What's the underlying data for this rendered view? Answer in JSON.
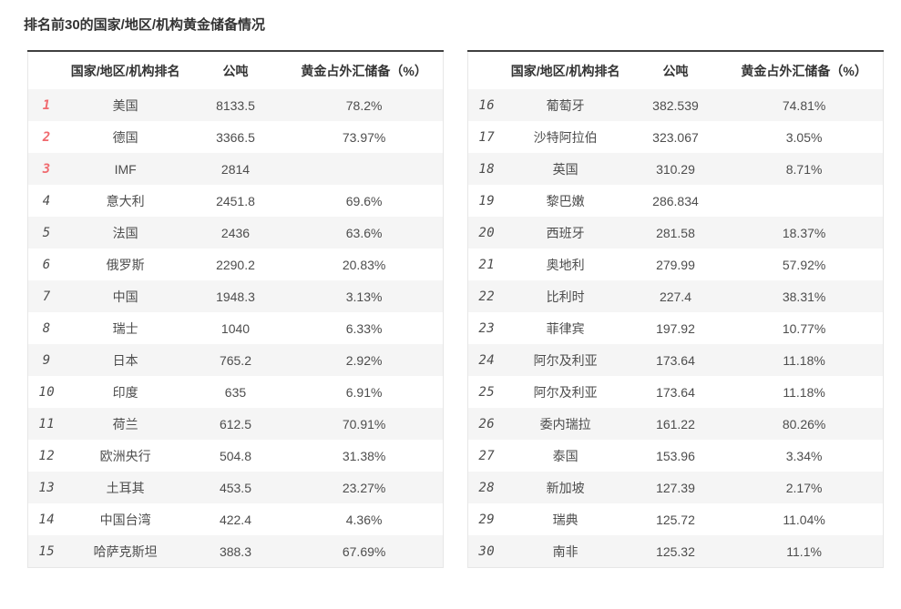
{
  "title": "排名前30的国家/地区/机构黄金储备情况",
  "colors": {
    "rank_top_red": "#f0696e",
    "rank_gray": "#777777",
    "row_alt_gray": "#f5f5f5",
    "table_top_border": "#404040",
    "table_light_border": "#e7e7e7"
  },
  "chart_data": {
    "type": "table",
    "title": "排名前30的国家/地区/机构黄金储备情况",
    "columns": [
      "国家/地区/机构排名",
      "公吨",
      "黄金占外汇储备（%）"
    ],
    "layout": "two side-by-side tables, ranks 1-15 left and 16-30 right, zebra striping on odd rows, top-3 ranks highlighted red",
    "left_rows": [
      {
        "rank": "1",
        "name": "美国",
        "tonnes": "8133.5",
        "percent": "78.2%"
      },
      {
        "rank": "2",
        "name": "德国",
        "tonnes": "3366.5",
        "percent": "73.97%"
      },
      {
        "rank": "3",
        "name": "IMF",
        "tonnes": "2814",
        "percent": ""
      },
      {
        "rank": "4",
        "name": "意大利",
        "tonnes": "2451.8",
        "percent": "69.6%"
      },
      {
        "rank": "5",
        "name": "法国",
        "tonnes": "2436",
        "percent": "63.6%"
      },
      {
        "rank": "6",
        "name": "俄罗斯",
        "tonnes": "2290.2",
        "percent": "20.83%"
      },
      {
        "rank": "7",
        "name": "中国",
        "tonnes": "1948.3",
        "percent": "3.13%"
      },
      {
        "rank": "8",
        "name": "瑞士",
        "tonnes": "1040",
        "percent": "6.33%"
      },
      {
        "rank": "9",
        "name": "日本",
        "tonnes": "765.2",
        "percent": "2.92%"
      },
      {
        "rank": "10",
        "name": "印度",
        "tonnes": "635",
        "percent": "6.91%"
      },
      {
        "rank": "11",
        "name": "荷兰",
        "tonnes": "612.5",
        "percent": "70.91%"
      },
      {
        "rank": "12",
        "name": "欧洲央行",
        "tonnes": "504.8",
        "percent": "31.38%"
      },
      {
        "rank": "13",
        "name": "土耳其",
        "tonnes": "453.5",
        "percent": "23.27%"
      },
      {
        "rank": "14",
        "name": "中国台湾",
        "tonnes": "422.4",
        "percent": "4.36%"
      },
      {
        "rank": "15",
        "name": "哈萨克斯坦",
        "tonnes": "388.3",
        "percent": "67.69%"
      }
    ],
    "right_rows": [
      {
        "rank": "16",
        "name": "葡萄牙",
        "tonnes": "382.539",
        "percent": "74.81%"
      },
      {
        "rank": "17",
        "name": "沙特阿拉伯",
        "tonnes": "323.067",
        "percent": "3.05%"
      },
      {
        "rank": "18",
        "name": "英国",
        "tonnes": "310.29",
        "percent": "8.71%"
      },
      {
        "rank": "19",
        "name": "黎巴嫩",
        "tonnes": "286.834",
        "percent": ""
      },
      {
        "rank": "20",
        "name": "西班牙",
        "tonnes": "281.58",
        "percent": "18.37%"
      },
      {
        "rank": "21",
        "name": "奥地利",
        "tonnes": "279.99",
        "percent": "57.92%"
      },
      {
        "rank": "22",
        "name": "比利时",
        "tonnes": "227.4",
        "percent": "38.31%"
      },
      {
        "rank": "23",
        "name": "菲律宾",
        "tonnes": "197.92",
        "percent": "10.77%"
      },
      {
        "rank": "24",
        "name": "阿尔及利亚",
        "tonnes": "173.64",
        "percent": "11.18%"
      },
      {
        "rank": "25",
        "name": "阿尔及利亚",
        "tonnes": "173.64",
        "percent": "11.18%"
      },
      {
        "rank": "26",
        "name": "委内瑞拉",
        "tonnes": "161.22",
        "percent": "80.26%"
      },
      {
        "rank": "27",
        "name": "泰国",
        "tonnes": "153.96",
        "percent": "3.34%"
      },
      {
        "rank": "28",
        "name": "新加坡",
        "tonnes": "127.39",
        "percent": "2.17%"
      },
      {
        "rank": "29",
        "name": "瑞典",
        "tonnes": "125.72",
        "percent": "11.04%"
      },
      {
        "rank": "30",
        "name": "南非",
        "tonnes": "125.32",
        "percent": "11.1%"
      }
    ]
  }
}
